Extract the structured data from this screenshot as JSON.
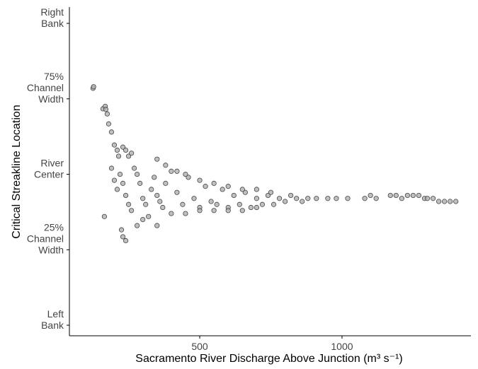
{
  "chart_data": {
    "type": "scatter",
    "x_label": "Sacramento River Discharge Above Junction (m³ s⁻¹)",
    "y_label": "Critical Streakline Location",
    "color": "#b0b0b0",
    "edge_color": "#444444",
    "xlim": [
      42,
      1453
    ],
    "ylim": [
      -0.035,
      1.054
    ],
    "xticks": [
      500,
      1000
    ],
    "yticks": [
      {
        "value": 0,
        "label": "Left Bank"
      },
      {
        "value": 0.25,
        "label": "25% Channel Width"
      },
      {
        "value": 0.5,
        "label": "River Center"
      },
      {
        "value": 0.75,
        "label": "75% Channel Width"
      },
      {
        "value": 1,
        "label": "Right Bank"
      }
    ],
    "x": [
      125,
      127,
      160,
      168,
      170,
      180,
      175,
      190,
      200,
      210,
      215,
      230,
      240,
      250,
      260,
      165,
      225,
      230,
      240,
      190,
      200,
      210,
      220,
      230,
      240,
      250,
      260,
      270,
      280,
      290,
      300,
      310,
      320,
      330,
      340,
      350,
      360,
      370,
      380,
      400,
      420,
      440,
      460,
      480,
      500,
      520,
      540,
      560,
      580,
      600,
      620,
      640,
      660,
      680,
      700,
      720,
      740,
      760,
      780,
      800,
      820,
      840,
      860,
      880,
      910,
      950,
      980,
      1020,
      1080,
      1100,
      1120,
      1170,
      1190,
      1210,
      1230,
      1250,
      1270,
      1290,
      1300,
      1320,
      1340,
      1360,
      1380,
      1400,
      350,
      380,
      420,
      450,
      500,
      550,
      600,
      650,
      700,
      750,
      400,
      450,
      500,
      550,
      600,
      650,
      700,
      350,
      300,
      280
    ],
    "y": [
      0.785,
      0.79,
      0.717,
      0.725,
      0.715,
      0.667,
      0.7,
      0.64,
      0.597,
      0.58,
      0.56,
      0.59,
      0.58,
      0.56,
      0.57,
      0.36,
      0.316,
      0.293,
      0.28,
      0.52,
      0.48,
      0.45,
      0.5,
      0.47,
      0.43,
      0.4,
      0.38,
      0.52,
      0.5,
      0.47,
      0.42,
      0.4,
      0.36,
      0.45,
      0.49,
      0.43,
      0.41,
      0.39,
      0.47,
      0.51,
      0.44,
      0.4,
      0.49,
      0.42,
      0.39,
      0.46,
      0.41,
      0.4,
      0.45,
      0.39,
      0.43,
      0.4,
      0.44,
      0.39,
      0.42,
      0.4,
      0.43,
      0.4,
      0.42,
      0.41,
      0.43,
      0.42,
      0.41,
      0.42,
      0.42,
      0.42,
      0.42,
      0.42,
      0.42,
      0.43,
      0.42,
      0.43,
      0.43,
      0.42,
      0.43,
      0.43,
      0.43,
      0.42,
      0.42,
      0.42,
      0.41,
      0.41,
      0.41,
      0.41,
      0.55,
      0.53,
      0.51,
      0.5,
      0.48,
      0.47,
      0.46,
      0.45,
      0.45,
      0.44,
      0.37,
      0.37,
      0.38,
      0.38,
      0.38,
      0.38,
      0.39,
      0.33,
      0.35,
      0.33
    ]
  }
}
